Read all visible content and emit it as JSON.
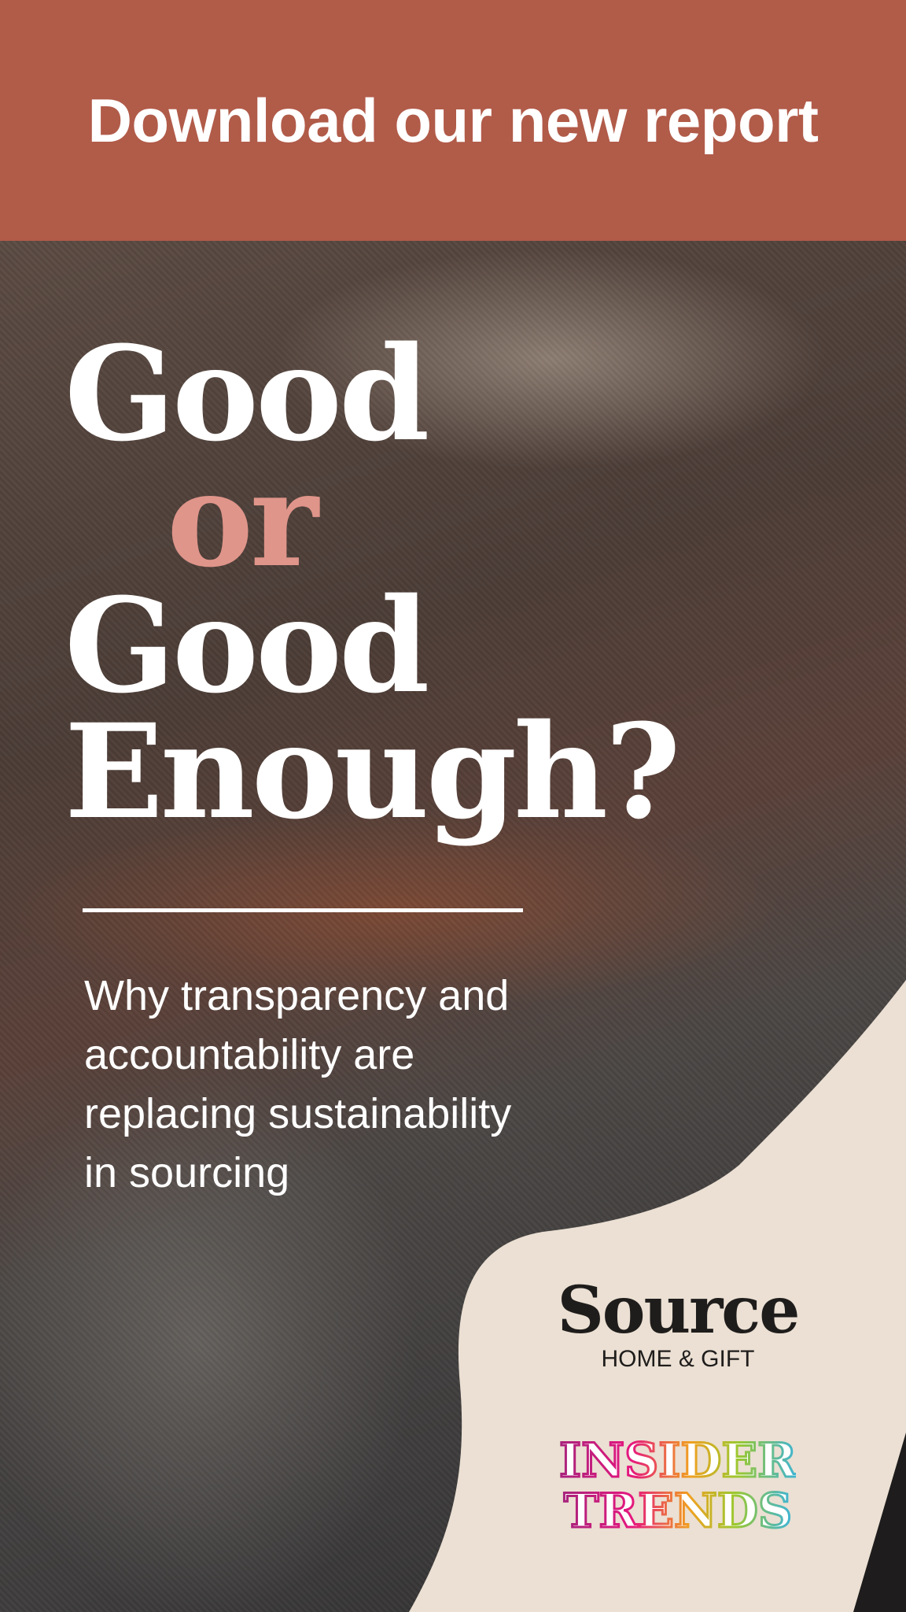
{
  "banner": {
    "text": "Download our new report",
    "color": "#b15b49"
  },
  "headline": {
    "line1": "Good",
    "line2": "or",
    "line3": "Good",
    "line4": "Enough?",
    "accent_color": "#e0958a"
  },
  "subtitle": {
    "lines": [
      "Why transparency and",
      "accountability are",
      "replacing sustainability",
      "in sourcing"
    ]
  },
  "logos": {
    "source": {
      "name": "Source",
      "tagline": "HOME & GIFT"
    },
    "insider_trends": {
      "line1": "INSIDER",
      "line2": "TRENDS"
    }
  },
  "colors": {
    "cream": "#ebe0d3",
    "text_dark": "#1f1d1c"
  }
}
